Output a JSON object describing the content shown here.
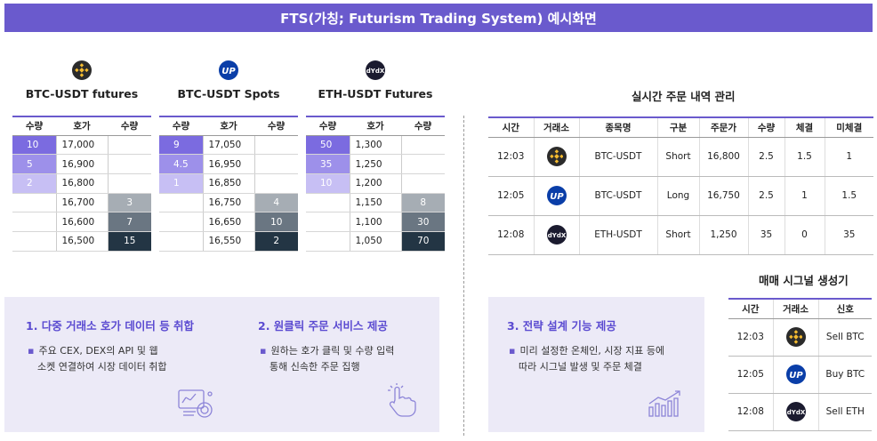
{
  "title": "FTS(가칭; Futurism Trading System) 예시화면",
  "orderbooks": [
    {
      "name": "BTC-USDT futures",
      "icon": "binance-icon",
      "headers": [
        "수량",
        "호가",
        "수량"
      ],
      "rows": [
        {
          "bid": "10",
          "price": "17,000",
          "ask": ""
        },
        {
          "bid": "5",
          "price": "16,900",
          "ask": ""
        },
        {
          "bid": "2",
          "price": "16,800",
          "ask": ""
        },
        {
          "bid": "",
          "price": "16,700",
          "ask": "3"
        },
        {
          "bid": "",
          "price": "16,600",
          "ask": "7"
        },
        {
          "bid": "",
          "price": "16,500",
          "ask": "15"
        }
      ]
    },
    {
      "name": "BTC-USDT Spots",
      "icon": "upbit-icon",
      "headers": [
        "수량",
        "호가",
        "수량"
      ],
      "rows": [
        {
          "bid": "9",
          "price": "17,050",
          "ask": ""
        },
        {
          "bid": "4.5",
          "price": "16,950",
          "ask": ""
        },
        {
          "bid": "1",
          "price": "16,850",
          "ask": ""
        },
        {
          "bid": "",
          "price": "16,750",
          "ask": "4"
        },
        {
          "bid": "",
          "price": "16,650",
          "ask": "10"
        },
        {
          "bid": "",
          "price": "16,550",
          "ask": "2"
        }
      ]
    },
    {
      "name": "ETH-USDT Futures",
      "icon": "dydx-icon",
      "headers": [
        "수량",
        "호가",
        "수량"
      ],
      "rows": [
        {
          "bid": "50",
          "price": "1,300",
          "ask": ""
        },
        {
          "bid": "35",
          "price": "1,250",
          "ask": ""
        },
        {
          "bid": "10",
          "price": "1,200",
          "ask": ""
        },
        {
          "bid": "",
          "price": "1,150",
          "ask": "8"
        },
        {
          "bid": "",
          "price": "1,100",
          "ask": "30"
        },
        {
          "bid": "",
          "price": "1,050",
          "ask": "70"
        }
      ]
    }
  ],
  "orders": {
    "title": "실시간 주문 내역 관리",
    "headers": [
      "시간",
      "거래소",
      "종목명",
      "구분",
      "주문가",
      "수량",
      "체결",
      "미체결"
    ],
    "rows": [
      {
        "time": "12:03",
        "icon": "binance-icon",
        "symbol": "BTC-USDT",
        "side": "Short",
        "price": "16,800",
        "qty": "2.5",
        "filled": "1.5",
        "unfilled": "1"
      },
      {
        "time": "12:05",
        "icon": "upbit-icon",
        "symbol": "BTC-USDT",
        "side": "Long",
        "price": "16,750",
        "qty": "2.5",
        "filled": "1",
        "unfilled": "1.5"
      },
      {
        "time": "12:08",
        "icon": "dydx-icon",
        "symbol": "ETH-USDT",
        "side": "Short",
        "price": "1,250",
        "qty": "35",
        "filled": "0",
        "unfilled": "35"
      }
    ]
  },
  "signals": {
    "title": "매매 시그널 생성기",
    "headers": [
      "시간",
      "거래소",
      "신호"
    ],
    "rows": [
      {
        "time": "12:03",
        "icon": "binance-icon",
        "signal": "Sell BTC"
      },
      {
        "time": "12:05",
        "icon": "upbit-icon",
        "signal": "Buy BTC"
      },
      {
        "time": "12:08",
        "icon": "dydx-icon",
        "signal": "Sell ETH"
      }
    ]
  },
  "features": [
    {
      "title": "1. 다중 거래소 호가 데이터 등 취합",
      "lines": [
        "주요 CEX, DEX의 API 및 웹",
        "소켓 연결하여 시장 데이터 취합"
      ],
      "icon": "data-analytics-icon"
    },
    {
      "title": "2. 원클릭 주문 서비스 제공",
      "lines": [
        "원하는 호가 클릭 및 수량 입력",
        "통해 신속한 주문 집행"
      ],
      "icon": "click-hand-icon"
    },
    {
      "title": "3. 전략 설계 기능 제공",
      "lines": [
        "미리 설정한 온체인, 시장 지표 등에",
        "따라 시그널 발생 및 주문 체결"
      ],
      "icon": "growth-chart-icon"
    }
  ],
  "colors": {
    "accent": "#6a5acd",
    "bid_shades": [
      "#7b6be0",
      "#9d90ea",
      "#c7bff4"
    ],
    "ask_shades": [
      "#a6adb4",
      "#6a7682",
      "#233544"
    ],
    "binance": "#f3ba2f",
    "upbit": "#0a3ea8",
    "dydx": "#1b1b2f"
  }
}
